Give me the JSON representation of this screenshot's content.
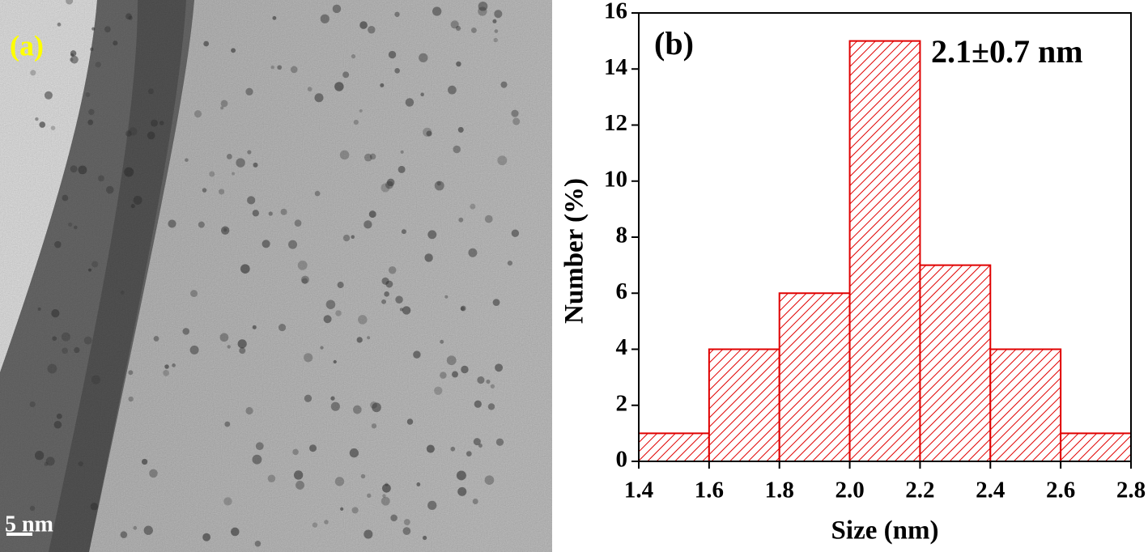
{
  "panel_a": {
    "label": "(a)",
    "scale_bar": "5 nm"
  },
  "chart_data": {
    "type": "histogram",
    "panel_label": "(b)",
    "annotation": "2.1±0.7 nm",
    "xlabel": "Size (nm)",
    "ylabel": "Number (%)",
    "bins": [
      1.4,
      1.6,
      1.8,
      2.0,
      2.2,
      2.4,
      2.6,
      2.8
    ],
    "values": [
      1,
      4,
      6,
      15,
      7,
      4,
      1
    ],
    "color": "#e00000",
    "xlim": [
      1.4,
      2.8
    ],
    "xticks": [
      1.4,
      1.6,
      1.8,
      {
        "value": 2.0,
        "label": "2.0"
      },
      2.2,
      2.4,
      2.6,
      2.8
    ],
    "ylim": [
      0,
      16
    ],
    "yticks": [
      0,
      2,
      4,
      6,
      8,
      10,
      12,
      14,
      16
    ]
  }
}
